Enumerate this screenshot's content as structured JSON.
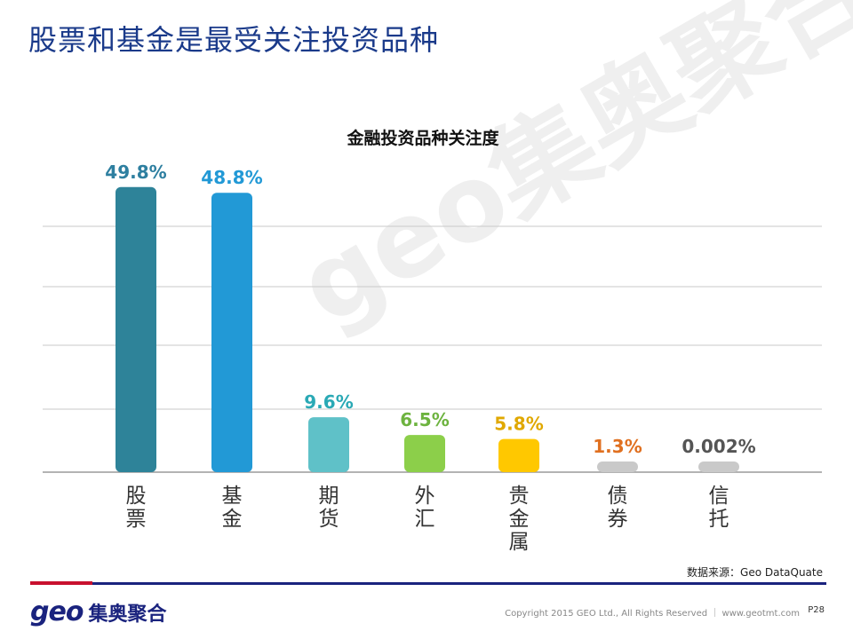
{
  "page": {
    "title": "股票和基金是最受关注投资品种",
    "watermark": "geo集奥聚合",
    "source": "数据来源：Geo DataQuate",
    "logo_geo": "geo",
    "logo_cn": "集奥聚合",
    "copyright": "Copyright 2015 GEO Ltd., All Rights Reserved ｜ www.geotmt.com",
    "page_number": "P28"
  },
  "chart_data": {
    "type": "bar",
    "title": "金融投资品种关注度",
    "categories": [
      "股票",
      "基金",
      "期货",
      "外汇",
      "贵金属",
      "债券",
      "信托"
    ],
    "values": [
      49.8,
      48.8,
      9.6,
      6.5,
      5.8,
      1.3,
      0.002
    ],
    "value_labels": [
      "49.8%",
      "48.8%",
      "9.6%",
      "6.5%",
      "5.8%",
      "1.3%",
      "0.002%"
    ],
    "colors": [
      "#2e8399",
      "#2299d6",
      "#5fc1c8",
      "#8ccf4a",
      "#ffc800",
      "#c9c9c9",
      "#c9c9c9"
    ],
    "label_colors": [
      "#2e7fa0",
      "#2299d6",
      "#2aa9b5",
      "#6db33f",
      "#e0a800",
      "#e07020",
      "#555555"
    ],
    "grid": true,
    "legend": "none"
  }
}
